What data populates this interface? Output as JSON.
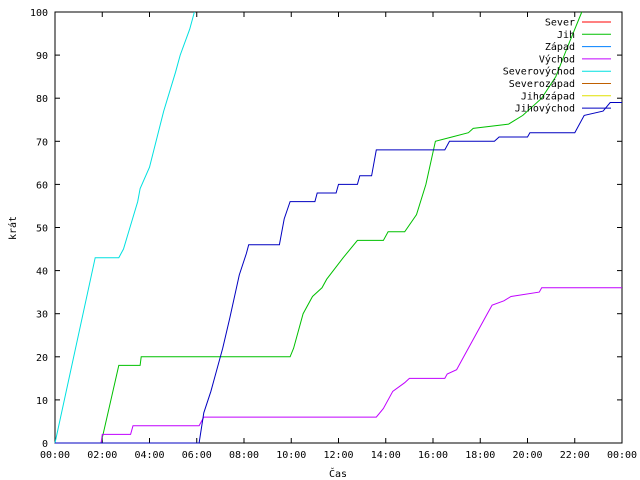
{
  "chart_data": {
    "type": "line",
    "title": "",
    "xlabel": "Čas",
    "ylabel": "krát",
    "xlim": [
      0,
      24
    ],
    "ylim": [
      0,
      100
    ],
    "x_ticks": [
      0,
      2,
      4,
      6,
      8,
      10,
      12,
      14,
      16,
      18,
      20,
      22,
      24
    ],
    "x_tick_labels": [
      "00:00",
      "02:00",
      "04:00",
      "06:00",
      "08:00",
      "10:00",
      "12:00",
      "14:00",
      "16:00",
      "18:00",
      "20:00",
      "22:00",
      "00:00"
    ],
    "y_ticks": [
      0,
      10,
      20,
      30,
      40,
      50,
      60,
      70,
      80,
      90,
      100
    ],
    "y_tick_labels": [
      "0",
      "10",
      "20",
      "30",
      "40",
      "50",
      "60",
      "70",
      "80",
      "90",
      "100"
    ],
    "grid": false,
    "legend_position": "top-right",
    "series": [
      {
        "name": "Sever",
        "color": "#ff0000",
        "points": []
      },
      {
        "name": "Jih",
        "color": "#00c000",
        "points": [
          [
            0,
            0
          ],
          [
            1.95,
            0
          ],
          [
            2.7,
            18
          ],
          [
            3.6,
            18
          ],
          [
            3.65,
            20
          ],
          [
            9.95,
            20
          ],
          [
            10.1,
            22
          ],
          [
            10.5,
            30
          ],
          [
            10.9,
            34
          ],
          [
            11.3,
            36
          ],
          [
            11.5,
            38
          ],
          [
            12.2,
            43
          ],
          [
            12.8,
            47
          ],
          [
            13.9,
            47
          ],
          [
            14.1,
            49
          ],
          [
            14.8,
            49
          ],
          [
            15.3,
            53
          ],
          [
            15.7,
            60
          ],
          [
            16.1,
            70
          ],
          [
            16.8,
            71
          ],
          [
            17.5,
            72
          ],
          [
            17.7,
            73
          ],
          [
            19.2,
            74
          ],
          [
            19.8,
            76
          ],
          [
            20.6,
            80
          ],
          [
            21.2,
            85
          ],
          [
            21.7,
            92
          ],
          [
            22.3,
            100
          ]
        ]
      },
      {
        "name": "Západ",
        "color": "#0080ff",
        "points": []
      },
      {
        "name": "Východ",
        "color": "#c000ff",
        "points": [
          [
            0,
            0
          ],
          [
            1.95,
            0
          ],
          [
            2.0,
            2
          ],
          [
            3.2,
            2
          ],
          [
            3.3,
            4
          ],
          [
            6.1,
            4
          ],
          [
            6.3,
            6
          ],
          [
            13.6,
            6
          ],
          [
            13.9,
            8
          ],
          [
            14.3,
            12
          ],
          [
            14.8,
            14
          ],
          [
            15.0,
            15
          ],
          [
            16.5,
            15
          ],
          [
            16.6,
            16
          ],
          [
            17.0,
            17
          ],
          [
            17.3,
            20
          ],
          [
            17.8,
            25
          ],
          [
            18.3,
            30
          ],
          [
            18.5,
            32
          ],
          [
            19.0,
            33
          ],
          [
            19.3,
            34
          ],
          [
            20.5,
            35
          ],
          [
            20.6,
            36
          ],
          [
            24,
            36
          ]
        ]
      },
      {
        "name": "Severovýchod",
        "color": "#00e0e0",
        "points": [
          [
            0,
            0
          ],
          [
            1.7,
            43
          ],
          [
            2.7,
            43
          ],
          [
            2.9,
            45
          ],
          [
            3.5,
            56
          ],
          [
            3.6,
            59
          ],
          [
            4.0,
            64
          ],
          [
            4.6,
            77
          ],
          [
            5.1,
            86
          ],
          [
            5.3,
            90
          ],
          [
            5.7,
            96
          ],
          [
            5.9,
            100
          ]
        ]
      },
      {
        "name": "Severozápad",
        "color": "#c06000",
        "points": []
      },
      {
        "name": "Jihozápad",
        "color": "#e0e000",
        "points": []
      },
      {
        "name": "Jihovýchod",
        "color": "#0000c0",
        "points": [
          [
            0,
            0
          ],
          [
            6.1,
            0
          ],
          [
            6.3,
            7
          ],
          [
            6.6,
            12
          ],
          [
            7.1,
            22
          ],
          [
            7.4,
            29
          ],
          [
            7.8,
            39
          ],
          [
            8.1,
            44
          ],
          [
            8.2,
            46
          ],
          [
            9.5,
            46
          ],
          [
            9.7,
            52
          ],
          [
            9.95,
            56
          ],
          [
            11.0,
            56
          ],
          [
            11.1,
            58
          ],
          [
            11.9,
            58
          ],
          [
            12.0,
            60
          ],
          [
            12.8,
            60
          ],
          [
            12.9,
            62
          ],
          [
            13.4,
            62
          ],
          [
            13.6,
            68
          ],
          [
            16.5,
            68
          ],
          [
            16.7,
            70
          ],
          [
            18.6,
            70
          ],
          [
            18.8,
            71
          ],
          [
            20.0,
            71
          ],
          [
            20.1,
            72
          ],
          [
            22.0,
            72
          ],
          [
            22.4,
            76
          ],
          [
            23.2,
            77
          ],
          [
            23.5,
            79
          ],
          [
            24,
            79
          ]
        ]
      }
    ]
  }
}
